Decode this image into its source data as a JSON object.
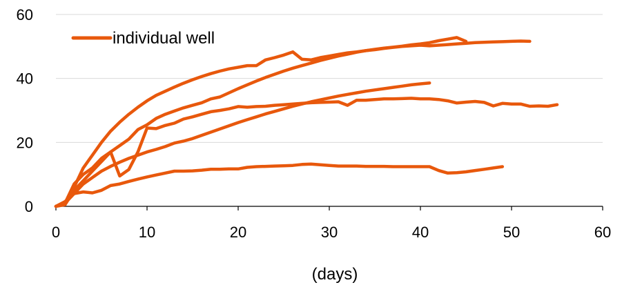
{
  "chart_data": {
    "type": "line",
    "title": "",
    "xlabel": "(days)",
    "ylabel": "",
    "xlim": [
      0,
      60
    ],
    "ylim": [
      0,
      60
    ],
    "xticks": [
      0,
      10,
      20,
      30,
      40,
      50,
      60
    ],
    "yticks": [
      0,
      20,
      40,
      60
    ],
    "grid": {
      "x": false,
      "y": true
    },
    "legend": {
      "position": "top-left",
      "entries": [
        "individual well"
      ]
    },
    "line_color": "#E8580C",
    "grid_color": "#D9D9D9",
    "axis_color": "#000000",
    "series": [
      {
        "name": "individual well",
        "points": [
          [
            0,
            0
          ],
          [
            1,
            0.5
          ],
          [
            2,
            5
          ],
          [
            3,
            8
          ],
          [
            4,
            11
          ],
          [
            5,
            14
          ],
          [
            6,
            17
          ],
          [
            7,
            19
          ],
          [
            8,
            21
          ],
          [
            9,
            24
          ],
          [
            10,
            25.5
          ],
          [
            11,
            27.5
          ],
          [
            12,
            28.8
          ],
          [
            13,
            29.8
          ],
          [
            14,
            30.8
          ],
          [
            15,
            31.6
          ],
          [
            16,
            32.4
          ],
          [
            17,
            33.6
          ],
          [
            18,
            34.2
          ],
          [
            19,
            35.5
          ],
          [
            20,
            36.8
          ],
          [
            21,
            38
          ],
          [
            22,
            39.2
          ],
          [
            23,
            40.3
          ],
          [
            24,
            41.3
          ],
          [
            25,
            42.3
          ],
          [
            26,
            43.2
          ],
          [
            27,
            44
          ],
          [
            28,
            44.8
          ],
          [
            29,
            45.6
          ],
          [
            30,
            46.3
          ],
          [
            31,
            47
          ],
          [
            32,
            47.6
          ],
          [
            33,
            48.2
          ],
          [
            34,
            48.7
          ],
          [
            35,
            49.1
          ],
          [
            36,
            49.5
          ],
          [
            37,
            49.8
          ],
          [
            38,
            50.1
          ],
          [
            39,
            50.5
          ],
          [
            40,
            50.8
          ],
          [
            41,
            51.2
          ],
          [
            42,
            51.8
          ],
          [
            43,
            52.3
          ],
          [
            44,
            52.8
          ],
          [
            45,
            51.6
          ]
        ]
      },
      {
        "name": "",
        "points": [
          [
            0,
            0
          ],
          [
            1,
            1
          ],
          [
            2,
            6
          ],
          [
            3,
            12
          ],
          [
            4,
            16
          ],
          [
            5,
            20
          ],
          [
            6,
            23.5
          ],
          [
            7,
            26.3
          ],
          [
            8,
            28.8
          ],
          [
            9,
            31
          ],
          [
            10,
            33
          ],
          [
            11,
            34.7
          ],
          [
            12,
            36
          ],
          [
            13,
            37.3
          ],
          [
            14,
            38.5
          ],
          [
            15,
            39.6
          ],
          [
            16,
            40.6
          ],
          [
            17,
            41.5
          ],
          [
            18,
            42.3
          ],
          [
            19,
            43
          ],
          [
            20,
            43.5
          ],
          [
            21,
            44
          ],
          [
            22,
            44
          ],
          [
            23,
            45.8
          ],
          [
            24,
            46.5
          ],
          [
            25,
            47.3
          ],
          [
            26,
            48.3
          ],
          [
            27,
            46
          ],
          [
            28,
            45.8
          ],
          [
            29,
            46.5
          ],
          [
            30,
            47
          ],
          [
            31,
            47.5
          ],
          [
            32,
            48
          ],
          [
            33,
            48.3
          ],
          [
            34,
            48.7
          ],
          [
            35,
            49
          ],
          [
            36,
            49.4
          ],
          [
            37,
            49.7
          ],
          [
            38,
            50
          ],
          [
            39,
            50.2
          ],
          [
            40,
            50.4
          ],
          [
            41,
            50.2
          ],
          [
            42,
            50.4
          ],
          [
            43,
            50.6
          ],
          [
            44,
            50.8
          ],
          [
            45,
            51
          ],
          [
            46,
            51.2
          ],
          [
            47,
            51.3
          ],
          [
            48,
            51.4
          ],
          [
            49,
            51.5
          ],
          [
            50,
            51.6
          ],
          [
            51,
            51.7
          ],
          [
            52,
            51.6
          ]
        ]
      },
      {
        "name": "",
        "points": [
          [
            0,
            0
          ],
          [
            1,
            1
          ],
          [
            2,
            7
          ],
          [
            3,
            10
          ],
          [
            4,
            12
          ],
          [
            5,
            15
          ],
          [
            6,
            17
          ],
          [
            7,
            9.5
          ],
          [
            8,
            11.5
          ],
          [
            9,
            17
          ],
          [
            10,
            24.5
          ],
          [
            11,
            24.3
          ],
          [
            12,
            25.3
          ],
          [
            13,
            26
          ],
          [
            14,
            27.3
          ],
          [
            15,
            28
          ],
          [
            16,
            28.8
          ],
          [
            17,
            29.6
          ],
          [
            18,
            30
          ],
          [
            19,
            30.5
          ],
          [
            20,
            31.2
          ],
          [
            21,
            31
          ],
          [
            22,
            31.2
          ],
          [
            23,
            31.3
          ],
          [
            24,
            31.6
          ],
          [
            25,
            31.8
          ],
          [
            26,
            32
          ],
          [
            27,
            32.2
          ],
          [
            28,
            32.4
          ],
          [
            29,
            32.5
          ],
          [
            30,
            32.6
          ],
          [
            31,
            32.7
          ],
          [
            32,
            31.6
          ],
          [
            33,
            33.2
          ],
          [
            34,
            33.2
          ],
          [
            35,
            33.4
          ],
          [
            36,
            33.6
          ],
          [
            37,
            33.6
          ],
          [
            38,
            33.7
          ],
          [
            39,
            33.8
          ],
          [
            40,
            33.6
          ],
          [
            41,
            33.6
          ],
          [
            42,
            33.4
          ],
          [
            43,
            33
          ],
          [
            44,
            32.3
          ],
          [
            45,
            32.6
          ],
          [
            46,
            32.8
          ],
          [
            47,
            32.5
          ],
          [
            48,
            31.4
          ],
          [
            49,
            32.2
          ],
          [
            50,
            32
          ],
          [
            51,
            32
          ],
          [
            52,
            31.3
          ],
          [
            53,
            31.4
          ],
          [
            54,
            31.3
          ],
          [
            55,
            31.8
          ]
        ]
      },
      {
        "name": "",
        "points": [
          [
            0,
            0
          ],
          [
            1,
            1
          ],
          [
            2,
            4
          ],
          [
            3,
            7
          ],
          [
            4,
            9
          ],
          [
            5,
            11
          ],
          [
            6,
            12.5
          ],
          [
            7,
            13.8
          ],
          [
            8,
            15
          ],
          [
            9,
            16
          ],
          [
            10,
            17
          ],
          [
            11,
            17.8
          ],
          [
            12,
            18.7
          ],
          [
            13,
            19.8
          ],
          [
            14,
            20.4
          ],
          [
            15,
            21.2
          ],
          [
            16,
            22.2
          ],
          [
            17,
            23.2
          ],
          [
            18,
            24.2
          ],
          [
            19,
            25.2
          ],
          [
            20,
            26.2
          ],
          [
            21,
            27.1
          ],
          [
            22,
            28
          ],
          [
            23,
            28.9
          ],
          [
            24,
            29.7
          ],
          [
            25,
            30.5
          ],
          [
            26,
            31.3
          ],
          [
            27,
            32
          ],
          [
            28,
            32.7
          ],
          [
            29,
            33.3
          ],
          [
            30,
            33.9
          ],
          [
            31,
            34.5
          ],
          [
            32,
            35
          ],
          [
            33,
            35.5
          ],
          [
            34,
            36
          ],
          [
            35,
            36.4
          ],
          [
            36,
            36.8
          ],
          [
            37,
            37.2
          ],
          [
            38,
            37.6
          ],
          [
            39,
            38
          ],
          [
            40,
            38.3
          ],
          [
            41,
            38.6
          ]
        ]
      },
      {
        "name": "",
        "points": [
          [
            0,
            0
          ],
          [
            1,
            1.5
          ],
          [
            2,
            4
          ],
          [
            3,
            4.5
          ],
          [
            4,
            4.2
          ],
          [
            5,
            5
          ],
          [
            6,
            6.5
          ],
          [
            7,
            7
          ],
          [
            8,
            7.8
          ],
          [
            9,
            8.5
          ],
          [
            10,
            9.2
          ],
          [
            11,
            9.8
          ],
          [
            12,
            10.4
          ],
          [
            13,
            11
          ],
          [
            14,
            11
          ],
          [
            15,
            11.1
          ],
          [
            16,
            11.3
          ],
          [
            17,
            11.6
          ],
          [
            18,
            11.6
          ],
          [
            19,
            11.7
          ],
          [
            20,
            11.7
          ],
          [
            21,
            12.2
          ],
          [
            22,
            12.4
          ],
          [
            23,
            12.5
          ],
          [
            24,
            12.6
          ],
          [
            25,
            12.7
          ],
          [
            26,
            12.8
          ],
          [
            27,
            13.1
          ],
          [
            28,
            13.2
          ],
          [
            29,
            13
          ],
          [
            30,
            12.8
          ],
          [
            31,
            12.6
          ],
          [
            32,
            12.6
          ],
          [
            33,
            12.6
          ],
          [
            34,
            12.5
          ],
          [
            35,
            12.5
          ],
          [
            36,
            12.5
          ],
          [
            37,
            12.4
          ],
          [
            38,
            12.4
          ],
          [
            39,
            12.4
          ],
          [
            40,
            12.4
          ],
          [
            41,
            12.4
          ],
          [
            42,
            11.2
          ],
          [
            43,
            10.4
          ],
          [
            44,
            10.5
          ],
          [
            45,
            10.8
          ],
          [
            46,
            11.2
          ],
          [
            47,
            11.6
          ],
          [
            48,
            12
          ],
          [
            49,
            12.4
          ]
        ]
      }
    ]
  }
}
